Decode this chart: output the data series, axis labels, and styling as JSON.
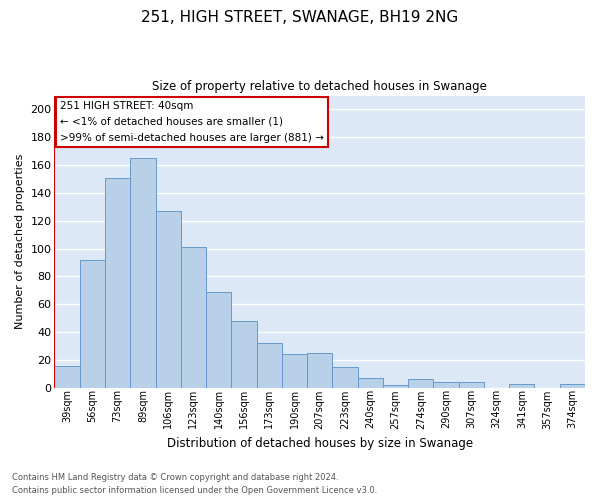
{
  "title": "251, HIGH STREET, SWANAGE, BH19 2NG",
  "subtitle": "Size of property relative to detached houses in Swanage",
  "xlabel": "Distribution of detached houses by size in Swanage",
  "ylabel": "Number of detached properties",
  "categories": [
    "39sqm",
    "56sqm",
    "73sqm",
    "89sqm",
    "106sqm",
    "123sqm",
    "140sqm",
    "156sqm",
    "173sqm",
    "190sqm",
    "207sqm",
    "223sqm",
    "240sqm",
    "257sqm",
    "274sqm",
    "290sqm",
    "307sqm",
    "324sqm",
    "341sqm",
    "357sqm",
    "374sqm"
  ],
  "values": [
    16,
    92,
    151,
    165,
    127,
    101,
    69,
    48,
    32,
    24,
    25,
    15,
    7,
    2,
    6,
    4,
    4,
    0,
    3,
    0,
    3
  ],
  "bar_color": "#b8d0e8",
  "bar_edge_color": "#6699cc",
  "background_color": "#dce8f5",
  "grid_color": "#ffffff",
  "fig_background": "#ffffff",
  "ylim": [
    0,
    210
  ],
  "yticks": [
    0,
    20,
    40,
    60,
    80,
    100,
    120,
    140,
    160,
    180,
    200
  ],
  "annotation_box_text1": "251 HIGH STREET: 40sqm",
  "annotation_line1": "← <1% of detached houses are smaller (1)",
  "annotation_line2": ">99% of semi-detached houses are larger (881) →",
  "annotation_box_color": "#ffffff",
  "annotation_box_edge_color": "#cc0000",
  "marker_line_color": "#cc0000",
  "footer1": "Contains HM Land Registry data © Crown copyright and database right 2024.",
  "footer2": "Contains public sector information licensed under the Open Government Licence v3.0."
}
